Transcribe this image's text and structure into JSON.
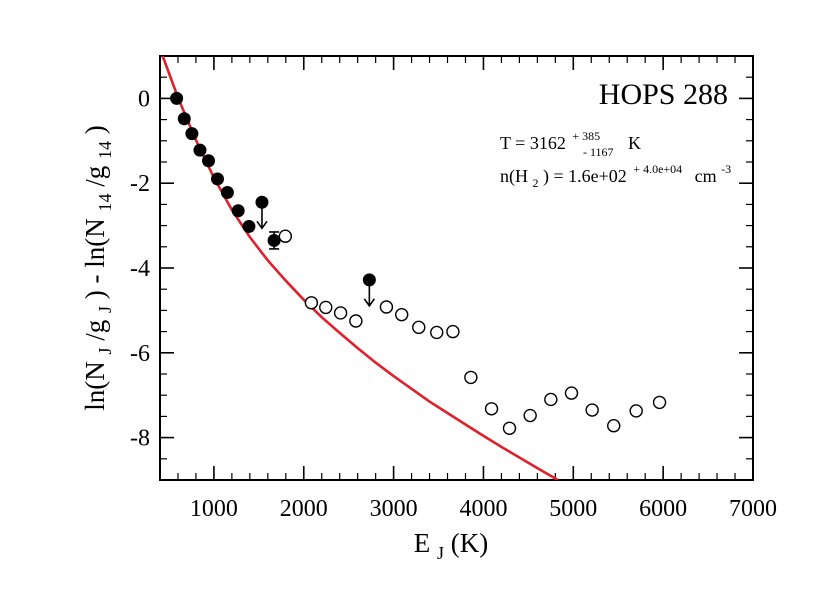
{
  "chart_data": {
    "type": "scatter",
    "title": "HOPS 288",
    "xlabel": {
      "main": "E",
      "sub": "J",
      "suffix": " (K)"
    },
    "ylabel": {
      "p1": "ln(N",
      "s1": "J",
      "p2": "/g",
      "s2": "J",
      "p3": ") - ln(N",
      "s3": "14",
      "p4": "/g",
      "s4": "14",
      "p5": ")"
    },
    "xlim": [
      400,
      7000
    ],
    "ylim": [
      -9,
      1
    ],
    "x_ticks": [
      1000,
      2000,
      3000,
      4000,
      5000,
      6000,
      7000
    ],
    "y_ticks": [
      0,
      -2,
      -4,
      -6,
      -8
    ],
    "x_tick_labels": [
      "1000",
      "2000",
      "3000",
      "4000",
      "5000",
      "6000",
      "7000"
    ],
    "y_tick_labels": [
      "0",
      "-2",
      "-4",
      "-6",
      "-8"
    ],
    "grid": false,
    "annotation": {
      "temp": {
        "prefix": "T = 3162",
        "sup": "+ 385",
        "sub": "- 1167",
        "unit": "K"
      },
      "density": {
        "prefix": "n(H",
        "sub": "2",
        "mid": ") =  1.6e+02",
        "sup": "+ 4.0e+04",
        "unit": "cm",
        "unit_sup": "-3"
      }
    },
    "series": [
      {
        "marker": "filled-circle",
        "color": "#000000",
        "x": [
          585,
          670,
          755,
          845,
          940,
          1040,
          1150,
          1270,
          1390
        ],
        "y": [
          0.0,
          -0.48,
          -0.83,
          -1.22,
          -1.47,
          -1.9,
          -2.22,
          -2.65,
          -3.02
        ]
      },
      {
        "marker": "filled-circle-errorbar",
        "color": "#000000",
        "x": [
          1670
        ],
        "y": [
          -3.35
        ],
        "yerr": [
          0.2
        ]
      },
      {
        "marker": "upper-limit",
        "color": "#000000",
        "x": [
          1535,
          2730
        ],
        "y": [
          -2.45,
          -4.28
        ]
      },
      {
        "marker": "open-circle",
        "color": "#000000",
        "x": [
          1795,
          2085,
          2245,
          2410,
          2580,
          2920,
          3090,
          3280,
          3480,
          3660,
          3860,
          4090,
          4290,
          4520,
          4750,
          4980,
          5210,
          5450,
          5700,
          5960
        ],
        "y": [
          -3.25,
          -4.82,
          -4.93,
          -5.06,
          -5.25,
          -4.92,
          -5.1,
          -5.4,
          -5.52,
          -5.5,
          -6.58,
          -7.32,
          -7.78,
          -7.48,
          -7.1,
          -6.95,
          -7.35,
          -7.72,
          -7.37,
          -7.17
        ]
      },
      {
        "type": "line",
        "marker": "model-fit",
        "color": "#e0202a",
        "x": [
          430,
          600,
          800,
          1000,
          1200,
          1400,
          1600,
          1800,
          2000,
          2200,
          2400,
          2600,
          2800,
          3000,
          3200,
          3400,
          3600,
          3800,
          4000,
          4200,
          4400,
          4600,
          4830
        ],
        "y": [
          1.0,
          0.02,
          -0.98,
          -1.87,
          -2.63,
          -3.27,
          -3.82,
          -4.3,
          -4.75,
          -5.16,
          -5.53,
          -5.89,
          -6.23,
          -6.55,
          -6.85,
          -7.15,
          -7.42,
          -7.69,
          -7.96,
          -8.22,
          -8.47,
          -8.72,
          -9.0
        ]
      }
    ]
  }
}
